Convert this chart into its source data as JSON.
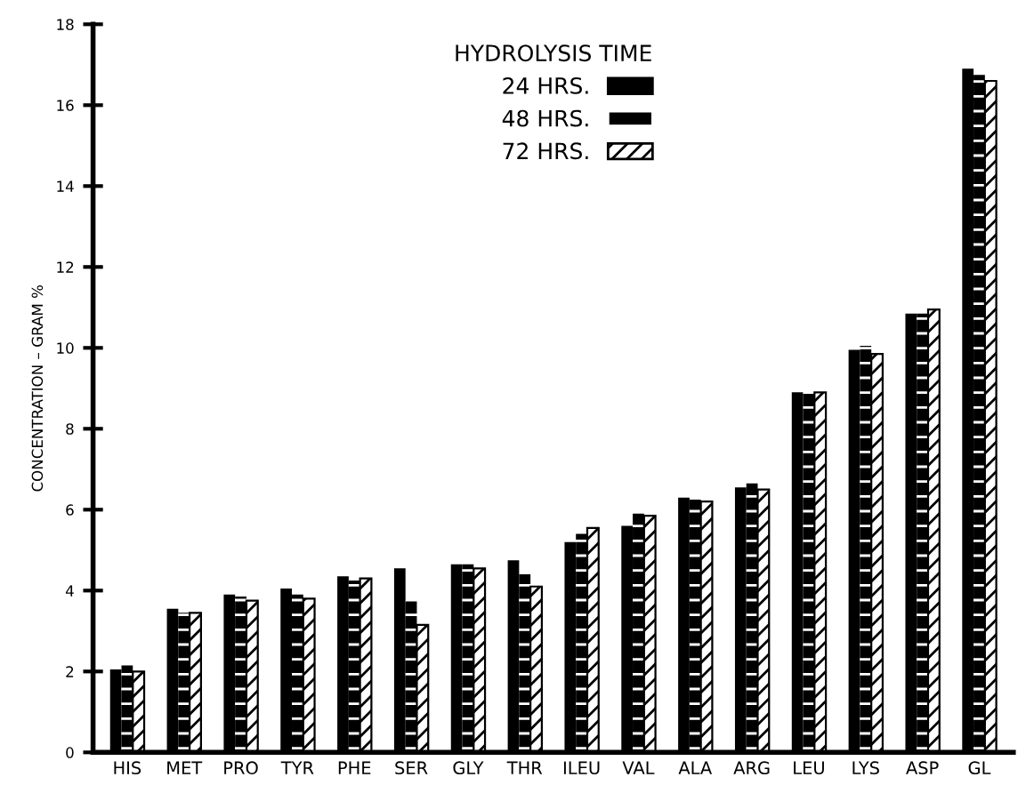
{
  "chart_data": {
    "type": "bar",
    "ylabel": "CONCENTRATION – GRAM %",
    "legend_title": "HYDROLYSIS TIME",
    "legend": "top",
    "categories": [
      "HIS",
      "MET",
      "PRO",
      "TYR",
      "PHE",
      "SER",
      "GLY",
      "THR",
      "ILEU",
      "VAL",
      "ALA",
      "ARG",
      "LEU",
      "LYS",
      "ASP",
      "GL"
    ],
    "series": [
      {
        "name": "24 HRS.",
        "color": "#000000",
        "values": [
          2.05,
          3.55,
          3.9,
          4.05,
          4.35,
          4.55,
          4.65,
          4.75,
          5.2,
          5.6,
          6.3,
          6.55,
          8.9,
          9.95,
          10.85,
          16.9
        ]
      },
      {
        "name": "48 HRS.",
        "color": "#000000",
        "values": [
          2.15,
          3.45,
          3.85,
          3.9,
          4.25,
          3.75,
          4.65,
          4.4,
          5.4,
          5.9,
          6.25,
          6.65,
          8.9,
          10.05,
          10.85,
          16.75
        ]
      },
      {
        "name": "72 HRS.",
        "color": "#000000",
        "values": [
          2.0,
          3.45,
          3.75,
          3.8,
          4.3,
          3.15,
          4.55,
          4.1,
          5.55,
          5.85,
          6.2,
          6.5,
          8.9,
          9.85,
          10.95,
          16.6
        ]
      }
    ],
    "ylim": [
      0,
      18
    ],
    "yticks": [
      0,
      2,
      4,
      6,
      8,
      10,
      12,
      14,
      16,
      18
    ],
    "grid": false
  }
}
